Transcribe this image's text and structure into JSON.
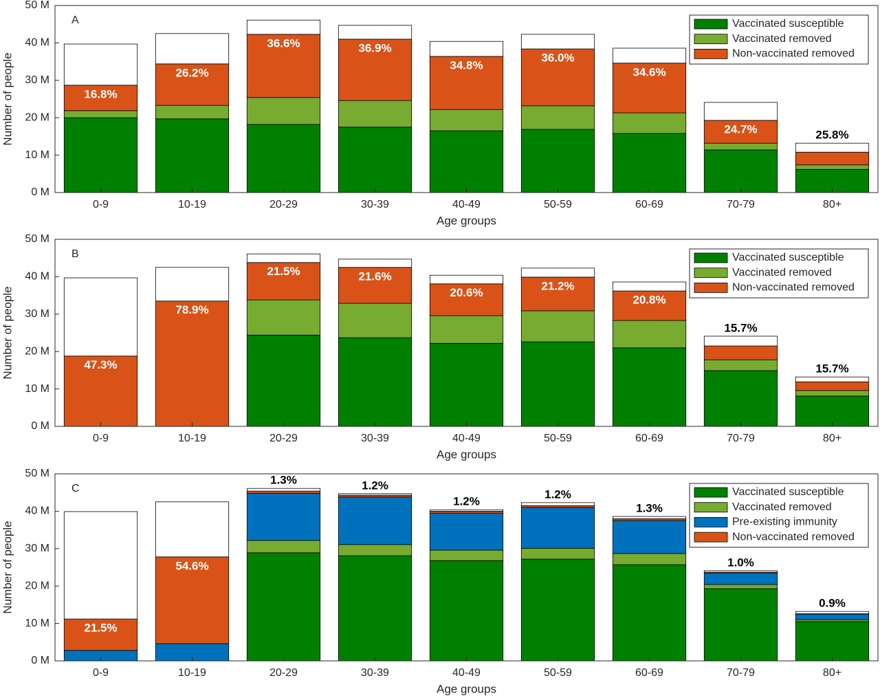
{
  "chart_data": [
    {
      "type": "stacked_bar",
      "label": "A",
      "xlabel": "Age groups",
      "ylabel": "Number of people",
      "categories": [
        "0-9",
        "10-19",
        "20-29",
        "30-39",
        "40-49",
        "50-59",
        "60-69",
        "70-79",
        "80+"
      ],
      "series": [
        {
          "name": "Vaccinated susceptible",
          "color": "#008000",
          "values": [
            20.0,
            19.7,
            18.2,
            17.5,
            16.5,
            16.9,
            15.8,
            11.4,
            6.2
          ]
        },
        {
          "name": "Vaccinated removed",
          "color": "#77ac30",
          "values": [
            1.9,
            3.6,
            7.2,
            7.1,
            5.7,
            6.3,
            5.5,
            1.8,
            1.2
          ]
        },
        {
          "name": "Non-vaccinated removed",
          "color": "#d95319",
          "values": [
            6.8,
            11.1,
            16.9,
            16.4,
            14.2,
            15.2,
            13.3,
            6.1,
            3.4
          ]
        },
        {
          "color": "#ffffff",
          "values": [
            11.0,
            8.1,
            3.8,
            3.7,
            4.0,
            3.9,
            4.0,
            4.8,
            2.4
          ]
        }
      ],
      "bar_labels": [
        "16.8%",
        "26.2%",
        "36.6%",
        "36.9%",
        "34.8%",
        "36.0%",
        "34.6%",
        "24.7%",
        "25.8%"
      ],
      "ylim": [
        0,
        50
      ],
      "yticks": [
        {
          "value": 0,
          "label": "0 M"
        },
        {
          "value": 10,
          "label": "10 M"
        },
        {
          "value": 20,
          "label": "20 M"
        },
        {
          "value": 30,
          "label": "30 M"
        },
        {
          "value": 40,
          "label": "40 M"
        },
        {
          "value": 50,
          "label": "50 M"
        }
      ],
      "grid": false,
      "legend": "upper right"
    },
    {
      "type": "stacked_bar",
      "label": "B",
      "xlabel": "Age groups",
      "ylabel": "Number of people",
      "categories": [
        "0-9",
        "10-19",
        "20-29",
        "30-39",
        "40-49",
        "50-59",
        "60-69",
        "70-79",
        "80+"
      ],
      "series": [
        {
          "name": "Vaccinated susceptible",
          "color": "#008000",
          "values": [
            0,
            0,
            24.4,
            23.7,
            22.2,
            22.6,
            21.0,
            14.9,
            8.1
          ]
        },
        {
          "name": "Vaccinated removed",
          "color": "#77ac30",
          "values": [
            0,
            0,
            9.4,
            9.2,
            7.4,
            8.3,
            7.3,
            2.9,
            1.5
          ]
        },
        {
          "name": "Non-vaccinated removed",
          "color": "#d95319",
          "values": [
            18.8,
            33.5,
            10.0,
            9.6,
            8.5,
            9.0,
            7.9,
            3.7,
            2.3
          ]
        },
        {
          "color": "#ffffff",
          "values": [
            20.9,
            9.0,
            2.3,
            2.2,
            2.3,
            2.4,
            2.4,
            2.6,
            1.3
          ]
        }
      ],
      "bar_labels": [
        "47.3%",
        "78.9%",
        "21.5%",
        "21.6%",
        "20.6%",
        "21.2%",
        "20.8%",
        "15.7%",
        "15.7%"
      ],
      "ylim": [
        0,
        50
      ],
      "yticks": [
        {
          "value": 0,
          "label": "0 M"
        },
        {
          "value": 10,
          "label": "10 M"
        },
        {
          "value": 20,
          "label": "20 M"
        },
        {
          "value": 30,
          "label": "30 M"
        },
        {
          "value": 40,
          "label": "40 M"
        },
        {
          "value": 50,
          "label": "50 M"
        }
      ],
      "grid": false,
      "legend": "upper right"
    },
    {
      "type": "stacked_bar",
      "label": "C",
      "xlabel": "Age groups",
      "ylabel": "Number of people",
      "categories": [
        "0-9",
        "10-19",
        "20-29",
        "30-39",
        "40-49",
        "50-59",
        "60-69",
        "70-79",
        "80+"
      ],
      "series": [
        {
          "name": "Vaccinated susceptible",
          "color": "#008000",
          "values": [
            0,
            0,
            28.9,
            28.1,
            26.8,
            27.2,
            25.7,
            19.3,
            10.5
          ]
        },
        {
          "name": "Vaccinated removed",
          "color": "#77ac30",
          "values": [
            0,
            0,
            3.3,
            3.0,
            2.8,
            2.9,
            3.0,
            1.1,
            0.5
          ]
        },
        {
          "name": "Pre-existing immunity",
          "color": "#0072bd",
          "values": [
            2.8,
            4.6,
            12.6,
            12.7,
            9.9,
            10.9,
            8.8,
            3.1,
            1.5
          ]
        },
        {
          "name": "Non-vaccinated removed",
          "color": "#d95319",
          "values": [
            8.4,
            23.2,
            0.6,
            0.5,
            0.5,
            0.5,
            0.5,
            0.2,
            0.1
          ]
        },
        {
          "color": "#ffffff",
          "values": [
            28.7,
            14.7,
            0.7,
            0.4,
            0.4,
            0.8,
            0.6,
            0.4,
            0.6
          ]
        }
      ],
      "bar_labels": [
        "21.5%",
        "54.6%",
        "1.3%",
        "1.2%",
        "1.2%",
        "1.2%",
        "1.3%",
        "1.0%",
        "0.9%"
      ],
      "ylim": [
        0,
        50
      ],
      "yticks": [
        {
          "value": 0,
          "label": "0 M"
        },
        {
          "value": 10,
          "label": "10 M"
        },
        {
          "value": 20,
          "label": "20 M"
        },
        {
          "value": 30,
          "label": "30 M"
        },
        {
          "value": 40,
          "label": "40 M"
        },
        {
          "value": 50,
          "label": "50 M"
        }
      ],
      "grid": false,
      "legend": "upper right"
    }
  ]
}
